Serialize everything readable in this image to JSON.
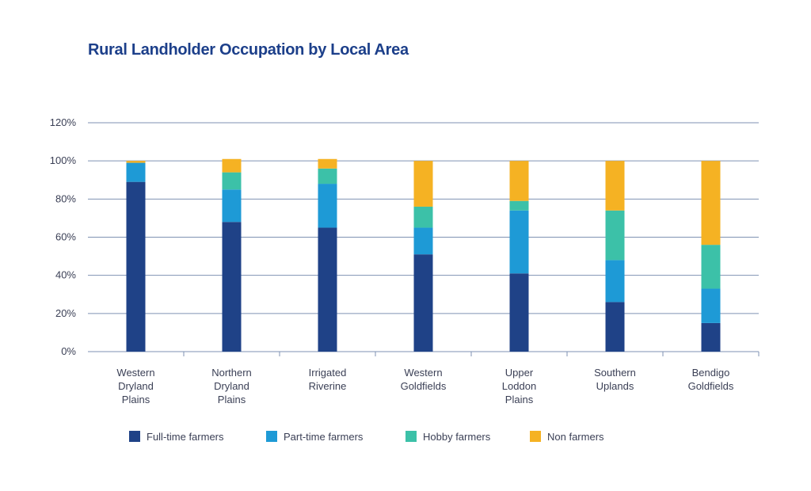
{
  "chart_data": {
    "type": "bar",
    "stacked": true,
    "title": "Rural Landholder Occupation by Local Area",
    "xlabel": "",
    "ylabel": "",
    "ylim": [
      0,
      120
    ],
    "y_ticks": [
      0,
      20,
      40,
      60,
      80,
      100,
      120
    ],
    "y_tick_labels": [
      "0%",
      "20%",
      "40%",
      "60%",
      "80%",
      "100%",
      "120%"
    ],
    "grid": true,
    "legend_position": "bottom",
    "categories": [
      "Western Dryland Plains",
      "Northern Dryland Plains",
      "Irrigated Riverine",
      "Western Goldfields",
      "Upper Loddon Plains",
      "Southern Uplands",
      "Bendigo Goldfields"
    ],
    "category_lines": [
      [
        "Western",
        "Dryland",
        "Plains"
      ],
      [
        "Northern",
        "Dryland",
        "Plains"
      ],
      [
        "Irrigated",
        "Riverine"
      ],
      [
        "Western",
        "Goldfields"
      ],
      [
        "Upper",
        "Loddon",
        "Plains"
      ],
      [
        "Southern",
        "Uplands"
      ],
      [
        "Bendigo",
        "Goldfields"
      ]
    ],
    "series": [
      {
        "name": "Full-time farmers",
        "color": "#1f4287",
        "values": [
          89,
          68,
          65,
          51,
          41,
          26,
          15
        ]
      },
      {
        "name": "Part-time farmers",
        "color": "#1e9ad6",
        "values": [
          10,
          17,
          23,
          14,
          33,
          22,
          18
        ]
      },
      {
        "name": "Hobby farmers",
        "color": "#3cc1a8",
        "values": [
          0,
          9,
          8,
          11,
          5,
          26,
          23
        ]
      },
      {
        "name": "Non farmers",
        "color": "#f5b223",
        "values": [
          1,
          7,
          5,
          24,
          21,
          26,
          44
        ]
      }
    ]
  },
  "colors": {
    "grid": "#7f92b3",
    "title": "#1c3f8a",
    "text": "#3a3f55"
  }
}
